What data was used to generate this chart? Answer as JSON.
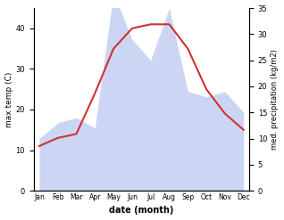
{
  "months": [
    "Jan",
    "Feb",
    "Mar",
    "Apr",
    "May",
    "Jun",
    "Jul",
    "Aug",
    "Sep",
    "Oct",
    "Nov",
    "Dec"
  ],
  "temp": [
    11,
    13,
    14,
    24,
    35,
    40,
    41,
    41,
    35,
    25,
    19,
    15
  ],
  "precip": [
    10,
    13,
    14,
    12,
    38,
    29,
    25,
    35,
    19,
    18,
    19,
    15
  ],
  "temp_color": "#cc3333",
  "precip_color": "#aabbee",
  "precip_fill_alpha": 0.6,
  "xlabel": "date (month)",
  "ylabel_left": "max temp (C)",
  "ylabel_right": "med. precipitation (kg/m2)",
  "ylim_left": [
    0,
    45
  ],
  "ylim_right": [
    0,
    35
  ],
  "yticks_left": [
    0,
    10,
    20,
    30,
    40
  ],
  "yticks_right": [
    0,
    5,
    10,
    15,
    20,
    25,
    30,
    35
  ],
  "scale_factor": 1.2857,
  "background_color": "#ffffff"
}
